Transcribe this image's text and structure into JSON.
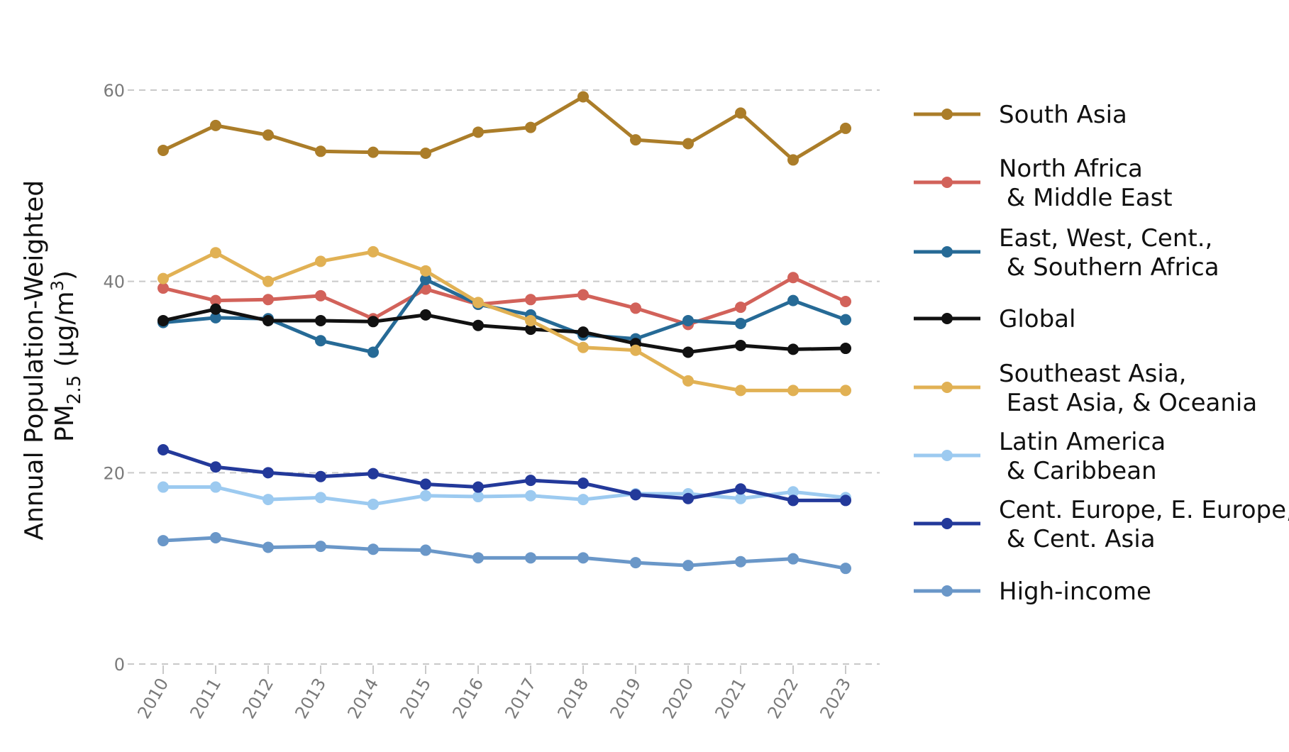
{
  "chart_data": {
    "type": "line",
    "title": "",
    "xlabel": "",
    "ylabel": "Annual Population-Weighted",
    "ylabel_line2": "PM",
    "ylabel_sub": "2.5",
    "ylabel_unit": " (μg/m",
    "ylabel_sup": "3",
    "ylabel_end": ")",
    "ylim": [
      0,
      60
    ],
    "yticks": [
      "0",
      "20",
      "40",
      "60"
    ],
    "grid": true,
    "legend_position": "right",
    "x": [
      "2010",
      "2011",
      "2012",
      "2013",
      "2014",
      "2015",
      "2016",
      "2017",
      "2018",
      "2019",
      "2020",
      "2021",
      "2022",
      "2023"
    ],
    "series": [
      {
        "name": "South Asia",
        "label_lines": [
          "South Asia"
        ],
        "color": "#AB7D29",
        "values": [
          53.7,
          56.3,
          55.3,
          53.6,
          53.5,
          53.4,
          55.6,
          56.1,
          59.3,
          54.8,
          54.4,
          57.6,
          52.7,
          56.0
        ]
      },
      {
        "name": "North Africa & Middle East",
        "label_lines": [
          "North Africa",
          " & Middle East"
        ],
        "color": "#D2625A",
        "values": [
          39.3,
          38.0,
          38.1,
          38.5,
          36.1,
          39.2,
          37.6,
          38.1,
          38.6,
          37.2,
          35.5,
          37.3,
          40.4,
          37.9
        ]
      },
      {
        "name": "East, West, Cent., & Southern Africa",
        "label_lines": [
          "East, West, Cent.,",
          " & Southern Africa"
        ],
        "color": "#266A96",
        "values": [
          35.7,
          36.2,
          36.1,
          33.8,
          32.6,
          40.2,
          37.6,
          36.5,
          34.4,
          34.0,
          35.9,
          35.6,
          38.0,
          36.0
        ]
      },
      {
        "name": "Global",
        "label_lines": [
          "Global"
        ],
        "color": "#111111",
        "values": [
          35.9,
          37.1,
          35.9,
          35.9,
          35.8,
          36.5,
          35.4,
          35.0,
          34.7,
          33.5,
          32.6,
          33.3,
          32.9,
          33.0
        ]
      },
      {
        "name": "Southeast Asia, East Asia, & Oceania",
        "label_lines": [
          "Southeast Asia,",
          " East Asia, & Oceania"
        ],
        "color": "#E1B154",
        "values": [
          40.3,
          43.0,
          40.0,
          42.1,
          43.1,
          41.1,
          37.8,
          35.9,
          33.1,
          32.8,
          29.6,
          28.6,
          28.6,
          28.6
        ]
      },
      {
        "name": "Latin America & Caribbean",
        "label_lines": [
          "Latin America",
          " & Caribbean"
        ],
        "color": "#9CCAF0",
        "values": [
          18.5,
          18.5,
          17.2,
          17.4,
          16.7,
          17.6,
          17.5,
          17.6,
          17.2,
          17.8,
          17.8,
          17.3,
          18.0,
          17.4
        ]
      },
      {
        "name": "Cent. Europe, E. Europe, & Cent. Asia",
        "label_lines": [
          "Cent. Europe, E. Europe,",
          " & Cent. Asia"
        ],
        "color": "#23399A",
        "values": [
          22.4,
          20.6,
          20.0,
          19.6,
          19.9,
          18.8,
          18.5,
          19.2,
          18.9,
          17.7,
          17.3,
          18.3,
          17.1,
          17.1
        ]
      },
      {
        "name": "High-income",
        "label_lines": [
          "High-income"
        ],
        "color": "#6A97C8",
        "values": [
          12.9,
          13.2,
          12.2,
          12.3,
          12.0,
          11.9,
          11.1,
          11.1,
          11.1,
          10.6,
          10.3,
          10.7,
          11.0,
          10.0
        ]
      }
    ]
  }
}
